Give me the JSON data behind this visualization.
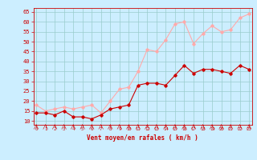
{
  "x": [
    0,
    1,
    2,
    3,
    4,
    5,
    6,
    7,
    8,
    9,
    10,
    11,
    12,
    13,
    14,
    15,
    16,
    17,
    18,
    19,
    20,
    21,
    22,
    23
  ],
  "vent_moyen": [
    14,
    14,
    13,
    15,
    12,
    12,
    11,
    13,
    16,
    17,
    18,
    28,
    29,
    29,
    28,
    33,
    38,
    34,
    36,
    36,
    35,
    34,
    38,
    36
  ],
  "rafales": [
    18,
    15,
    16,
    17,
    16,
    17,
    18,
    14,
    20,
    26,
    27,
    35,
    46,
    45,
    51,
    59,
    60,
    49,
    54,
    58,
    55,
    56,
    62,
    64
  ],
  "xlabel": "Vent moyen/en rafales ( km/h )",
  "ylim_min": 8,
  "ylim_max": 67,
  "yticks": [
    10,
    15,
    20,
    25,
    30,
    35,
    40,
    45,
    50,
    55,
    60,
    65
  ],
  "xticks": [
    0,
    1,
    2,
    3,
    4,
    5,
    6,
    7,
    8,
    9,
    10,
    11,
    12,
    13,
    14,
    15,
    16,
    17,
    18,
    19,
    20,
    21,
    22,
    23
  ],
  "color_moyen": "#cc0000",
  "color_rafales": "#ffaaaa",
  "bg_color": "#cceeff",
  "grid_color": "#99cccc",
  "text_color": "#cc0000",
  "marker": "D",
  "marker_size": 1.8,
  "line_width": 0.8
}
